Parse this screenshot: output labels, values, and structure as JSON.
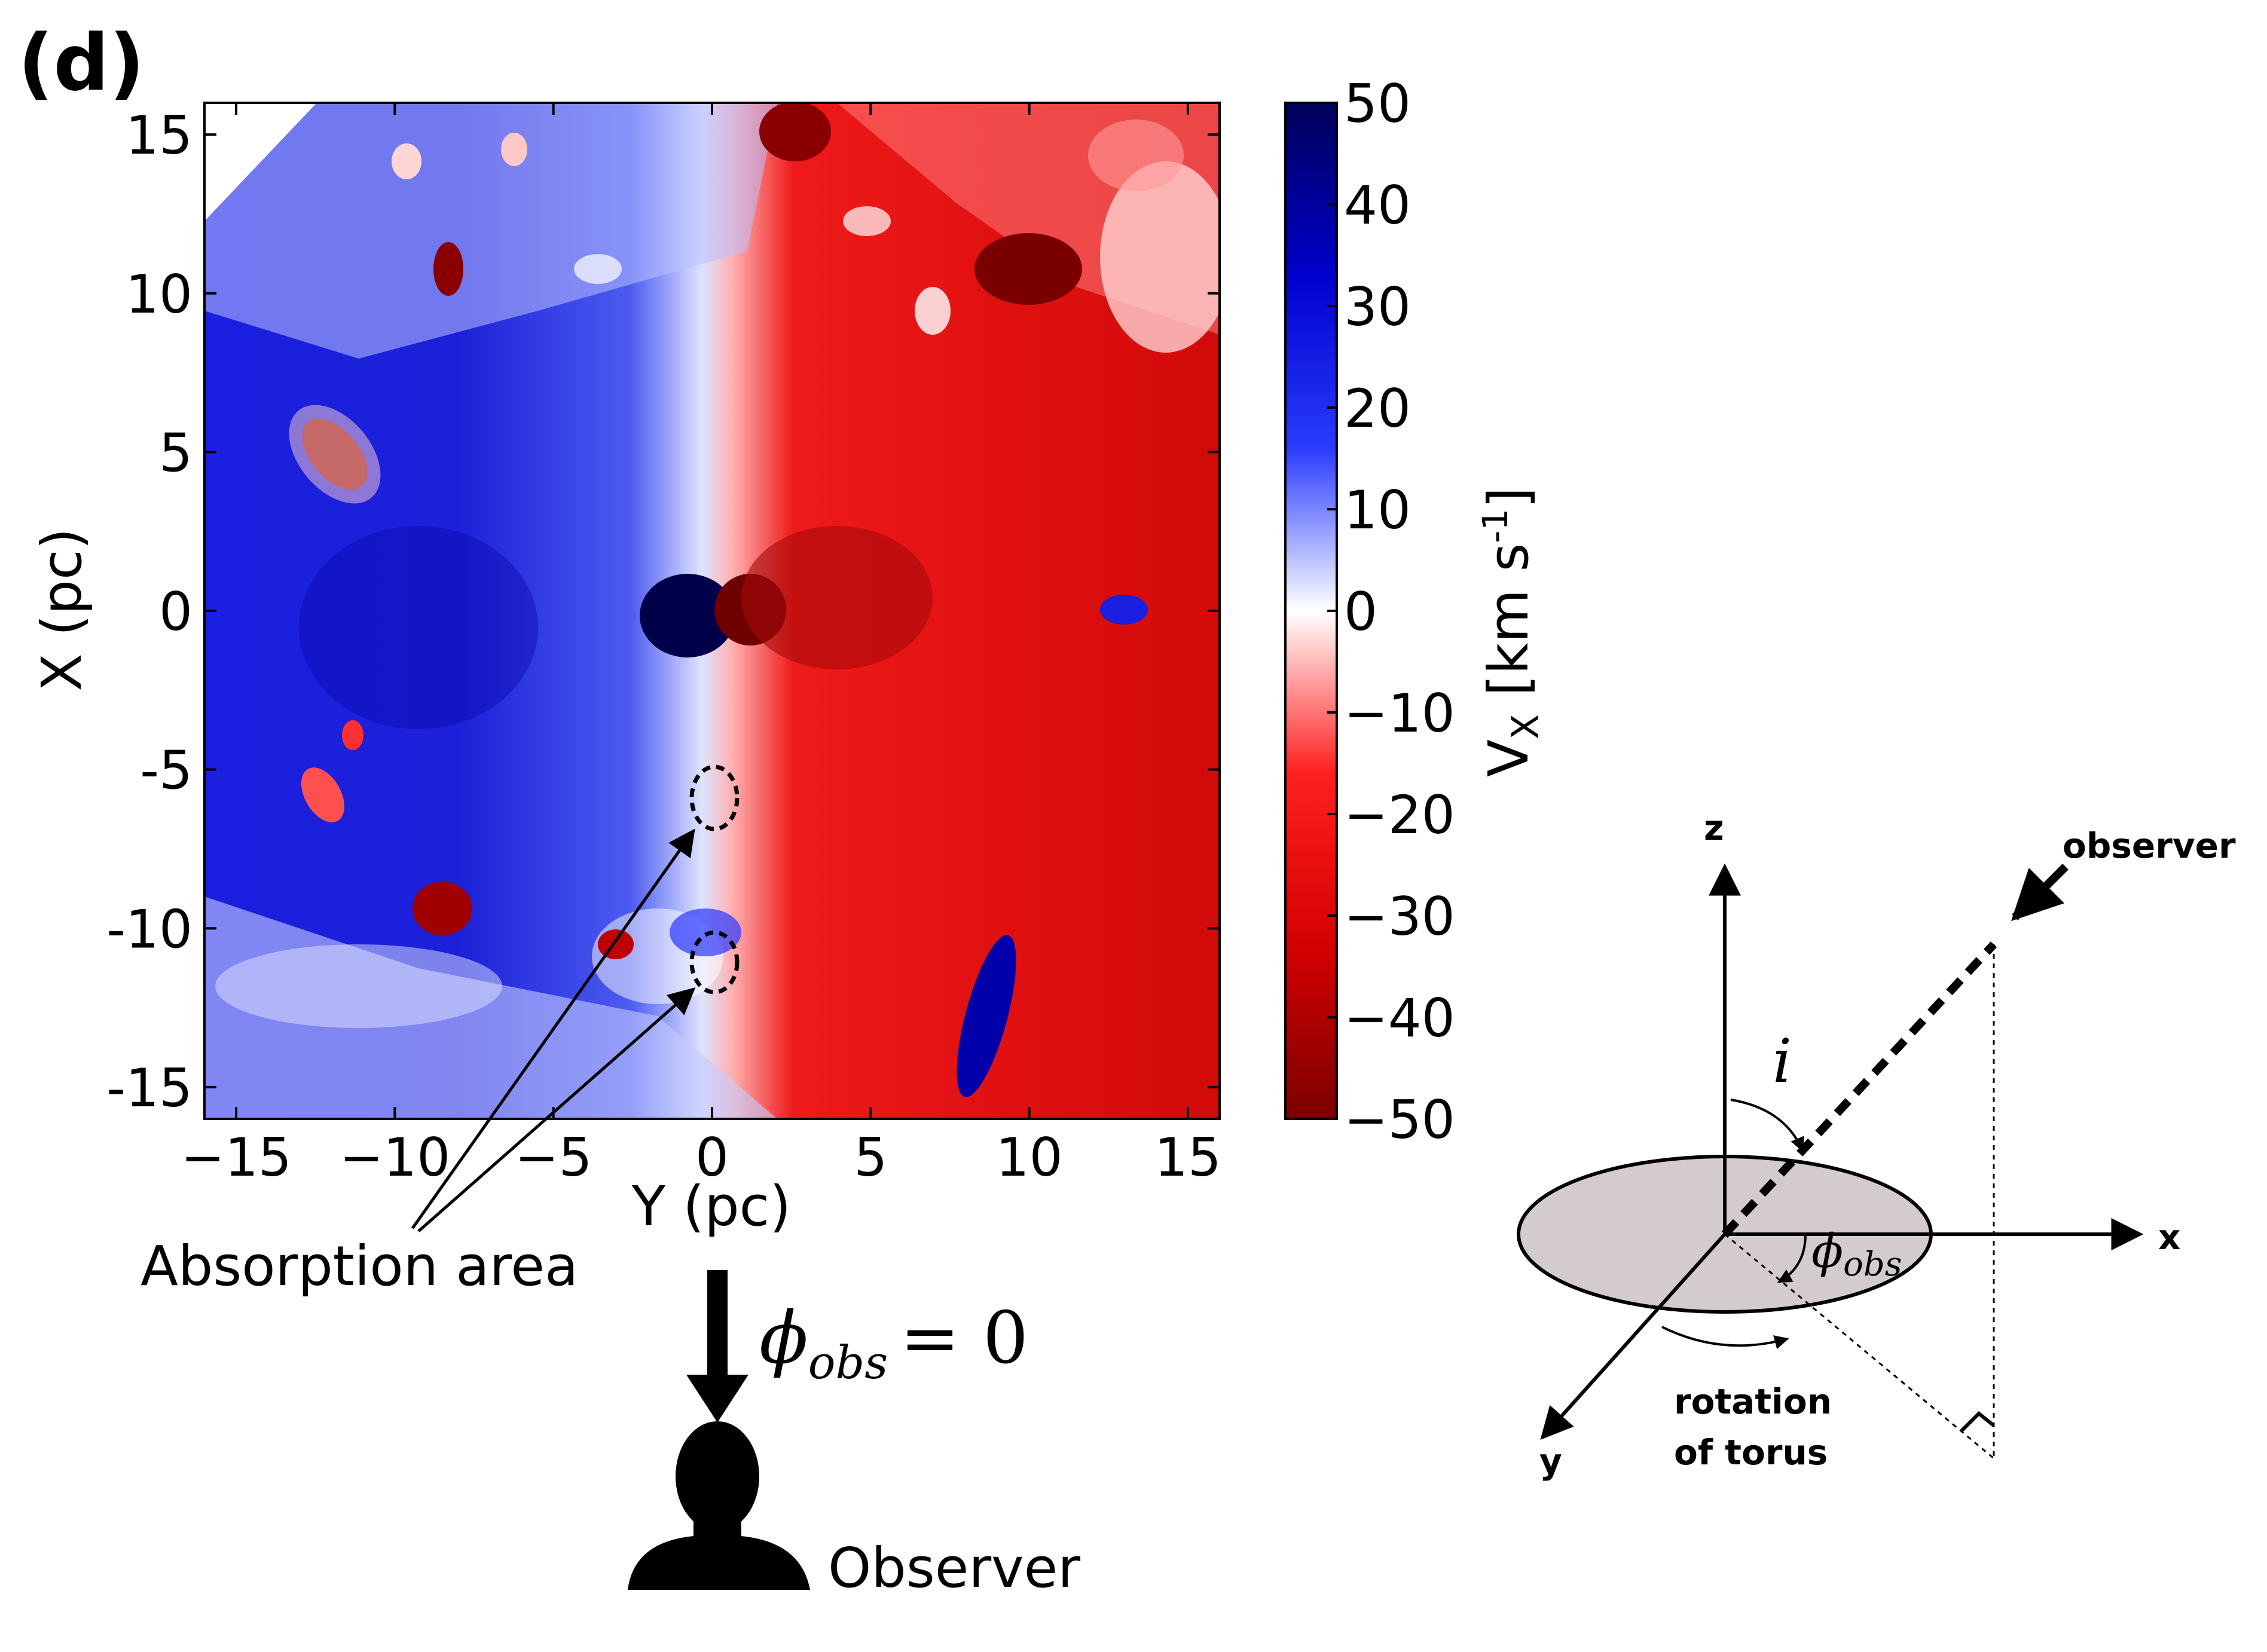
{
  "panel_label": "(d)",
  "chart_data": {
    "type": "heatmap",
    "xlabel": "Y (pc)",
    "ylabel": "X (pc)",
    "xlim": [
      -16,
      16
    ],
    "ylim": [
      16,
      -16
    ],
    "x_ticks": [
      "−15",
      "−10",
      "−5",
      "0",
      "5",
      "10",
      "15"
    ],
    "x_tick_values": [
      -15,
      -10,
      -5,
      0,
      5,
      10,
      15
    ],
    "y_ticks": [
      "-15",
      "-10",
      "-5",
      "0",
      "5",
      "10",
      "15"
    ],
    "y_tick_values": [
      -15,
      -10,
      -5,
      0,
      5,
      10,
      15
    ],
    "colorbar": {
      "label_main": "V",
      "label_sub": "X",
      "label_unit_open": "[km s",
      "label_unit_sup": "-1",
      "label_unit_close": "]",
      "min": -50,
      "max": 50,
      "ticks": [
        "50",
        "40",
        "30",
        "20",
        "10",
        "0",
        "−10",
        "−20",
        "−30",
        "−40",
        "−50"
      ],
      "tick_values": [
        50,
        40,
        30,
        20,
        10,
        0,
        -10,
        -20,
        -30,
        -40,
        -50
      ],
      "colormap": [
        "#7a0000",
        "#d40000",
        "#ff2020",
        "#ffffff",
        "#2a3cff",
        "#0000cc",
        "#00005a"
      ]
    },
    "annotations": [
      {
        "text": "Absorption area",
        "targets_y_x": [
          [
            0,
            6
          ],
          [
            0,
            11
          ]
        ]
      }
    ]
  },
  "observer_block": {
    "phi_symbol": "ϕ",
    "phi_sub": "obs",
    "equals_text": "= 0",
    "label": "Observer"
  },
  "geometry_diagram": {
    "axis_x": "x",
    "axis_y": "y",
    "axis_z": "z",
    "observer_label": "observer",
    "inclination_symbol": "i",
    "phi_symbol": "ϕ",
    "phi_sub": "obs",
    "rotation_label_line1": "rotation",
    "rotation_label_line2": "of torus",
    "disk_fill": "#d4cccc"
  }
}
